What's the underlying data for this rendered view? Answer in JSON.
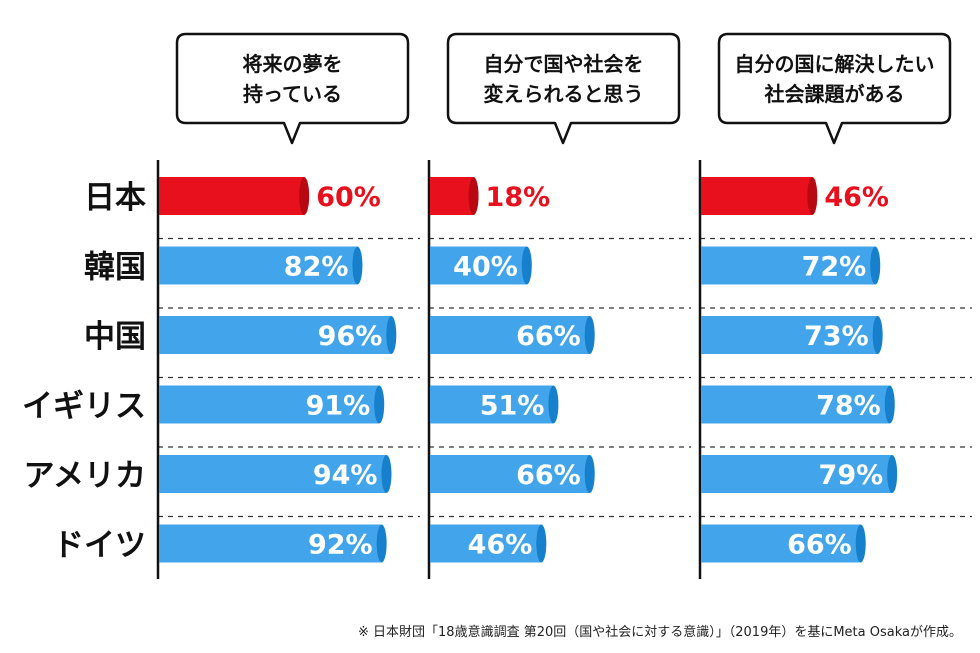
{
  "chart_data": {
    "type": "bar",
    "orientation": "horizontal",
    "categories": [
      "日本",
      "韓国",
      "中国",
      "イギリス",
      "アメリカ",
      "ドイツ"
    ],
    "series": [
      {
        "name": "将来の夢を持っている",
        "name_lines": [
          "将来の夢を",
          "持っている"
        ],
        "values": [
          60,
          82,
          96,
          91,
          94,
          92
        ]
      },
      {
        "name": "自分で国や社会を変えられると思う",
        "name_lines": [
          "自分で国や社会を",
          "変えられると思う"
        ],
        "values": [
          18,
          40,
          66,
          51,
          66,
          46
        ]
      },
      {
        "name": "自分の国に解決したい社会課題がある",
        "name_lines": [
          "自分の国に解決したい",
          "社会課題がある"
        ],
        "values": [
          46,
          72,
          73,
          78,
          79,
          66
        ]
      }
    ],
    "unit": "%",
    "xlim": [
      0,
      100
    ],
    "highlight_category": "日本",
    "colors": {
      "highlight": "#e8101c",
      "bar": "#42a5ec",
      "bar_cap": "#1680cc",
      "highlight_cap": "#b80812",
      "axis": "#111111",
      "divider": "#333333"
    }
  },
  "source_note": "※ 日本財団「18歳意識調査 第20回（国や社会に対する意識）」（2019年）を基にMeta Osakaが作成。"
}
